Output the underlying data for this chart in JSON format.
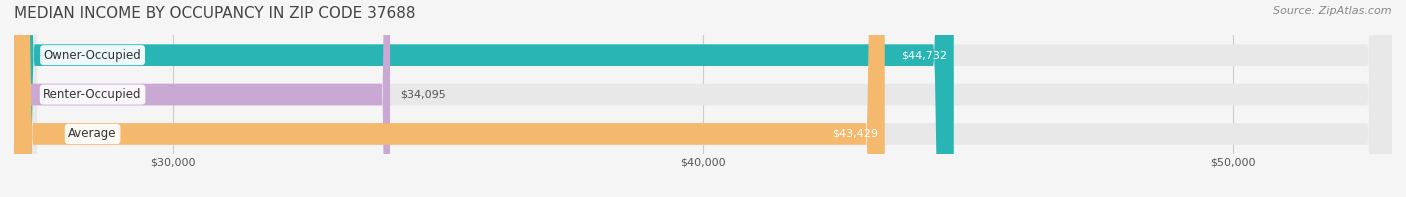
{
  "title": "MEDIAN INCOME BY OCCUPANCY IN ZIP CODE 37688",
  "source_text": "Source: ZipAtlas.com",
  "categories": [
    "Owner-Occupied",
    "Renter-Occupied",
    "Average"
  ],
  "values": [
    44732,
    34095,
    43429
  ],
  "bar_colors": [
    "#2ab5b5",
    "#c9a8d4",
    "#f5b96e"
  ],
  "bar_labels": [
    "$44,732",
    "$34,095",
    "$43,429"
  ],
  "label_colors": [
    "#ffffff",
    "#555555",
    "#ffffff"
  ],
  "xlim_min": 27000,
  "xlim_max": 53000,
  "xticks": [
    30000,
    40000,
    50000
  ],
  "xtick_labels": [
    "$30,000",
    "$40,000",
    "$50,000"
  ],
  "background_color": "#f5f5f5",
  "bar_background_color": "#e8e8e8",
  "title_fontsize": 11,
  "bar_height": 0.55,
  "bar_gap": 0.18
}
